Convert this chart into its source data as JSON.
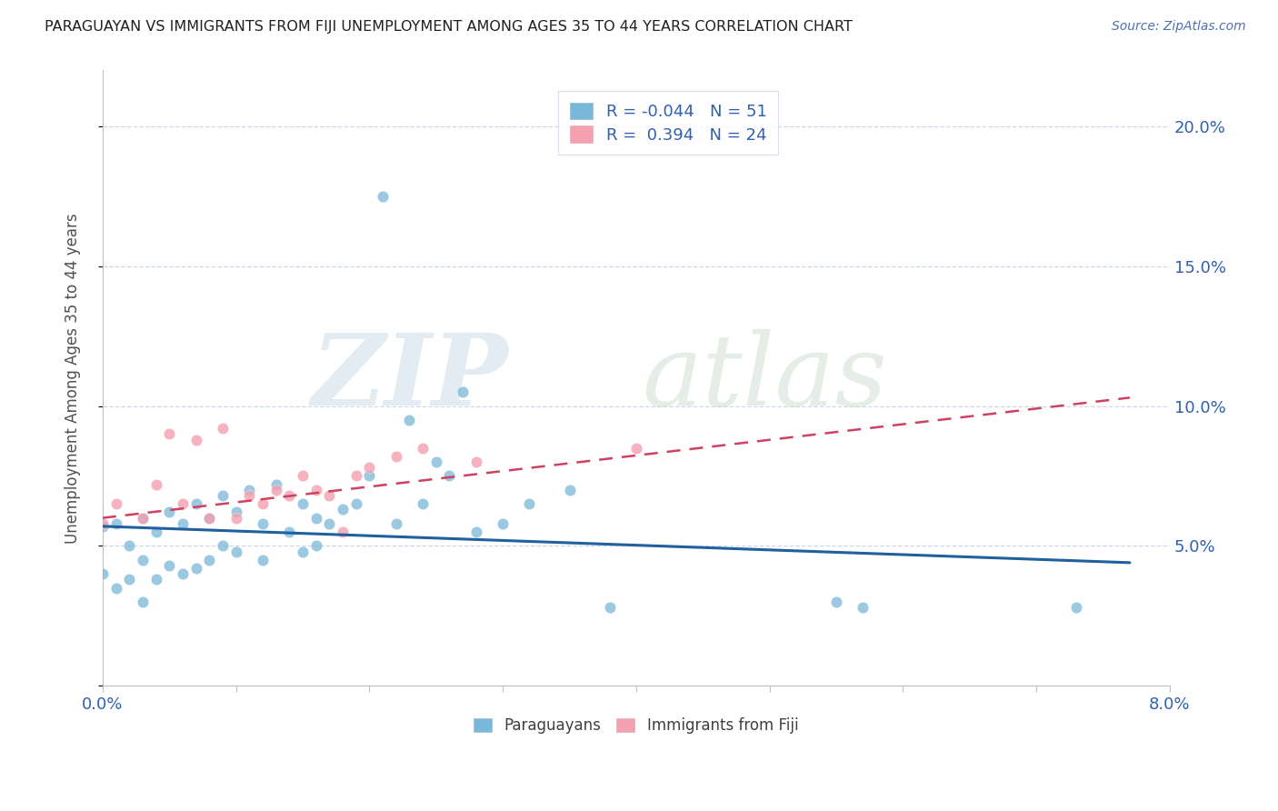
{
  "title": "PARAGUAYAN VS IMMIGRANTS FROM FIJI UNEMPLOYMENT AMONG AGES 35 TO 44 YEARS CORRELATION CHART",
  "source_text": "Source: ZipAtlas.com",
  "ylabel": "Unemployment Among Ages 35 to 44 years",
  "xlim": [
    0.0,
    0.08
  ],
  "ylim": [
    0.0,
    0.22
  ],
  "xticks": [
    0.0,
    0.01,
    0.02,
    0.03,
    0.04,
    0.05,
    0.06,
    0.07,
    0.08
  ],
  "xtick_labels": [
    "0.0%",
    "",
    "",
    "",
    "",
    "",
    "",
    "",
    "8.0%"
  ],
  "yticks": [
    0.0,
    0.05,
    0.1,
    0.15,
    0.2
  ],
  "ytick_labels": [
    "",
    "5.0%",
    "10.0%",
    "15.0%",
    "20.0%"
  ],
  "legend_r1": "R = -0.044   N = 51",
  "legend_r2": "R =  0.394   N = 24",
  "paraguayan_color": "#7ab8d9",
  "fiji_color": "#f4a0b0",
  "trend_paraguayan_color": "#2060a0",
  "trend_fiji_color": "#d04060",
  "paraguayan_scatter_x": [
    0.0,
    0.0,
    0.001,
    0.001,
    0.002,
    0.002,
    0.003,
    0.003,
    0.003,
    0.004,
    0.004,
    0.005,
    0.005,
    0.006,
    0.006,
    0.007,
    0.007,
    0.008,
    0.008,
    0.009,
    0.009,
    0.01,
    0.01,
    0.011,
    0.012,
    0.012,
    0.013,
    0.014,
    0.015,
    0.015,
    0.016,
    0.016,
    0.017,
    0.018,
    0.019,
    0.02,
    0.021,
    0.022,
    0.023,
    0.024,
    0.025,
    0.026,
    0.027,
    0.028,
    0.03,
    0.032,
    0.035,
    0.038,
    0.055,
    0.057,
    0.073
  ],
  "paraguayan_scatter_y": [
    0.057,
    0.04,
    0.058,
    0.035,
    0.05,
    0.038,
    0.06,
    0.045,
    0.03,
    0.055,
    0.038,
    0.062,
    0.043,
    0.058,
    0.04,
    0.065,
    0.042,
    0.06,
    0.045,
    0.068,
    0.05,
    0.062,
    0.048,
    0.07,
    0.058,
    0.045,
    0.072,
    0.055,
    0.065,
    0.048,
    0.06,
    0.05,
    0.058,
    0.063,
    0.065,
    0.075,
    0.175,
    0.058,
    0.095,
    0.065,
    0.08,
    0.075,
    0.105,
    0.055,
    0.058,
    0.065,
    0.07,
    0.028,
    0.03,
    0.028,
    0.028
  ],
  "fiji_scatter_x": [
    0.0,
    0.001,
    0.003,
    0.004,
    0.005,
    0.006,
    0.007,
    0.008,
    0.009,
    0.01,
    0.011,
    0.012,
    0.013,
    0.014,
    0.015,
    0.016,
    0.017,
    0.018,
    0.019,
    0.02,
    0.022,
    0.024,
    0.028,
    0.04
  ],
  "fiji_scatter_y": [
    0.058,
    0.065,
    0.06,
    0.072,
    0.09,
    0.065,
    0.088,
    0.06,
    0.092,
    0.06,
    0.068,
    0.065,
    0.07,
    0.068,
    0.075,
    0.07,
    0.068,
    0.055,
    0.075,
    0.078,
    0.082,
    0.085,
    0.08,
    0.085
  ],
  "trend_paraguayan_x0": 0.0,
  "trend_paraguayan_x1": 0.077,
  "trend_paraguayan_y0": 0.057,
  "trend_paraguayan_y1": 0.044,
  "trend_fiji_x0": 0.0,
  "trend_fiji_x1": 0.077,
  "trend_fiji_y0": 0.06,
  "trend_fiji_y1": 0.103
}
